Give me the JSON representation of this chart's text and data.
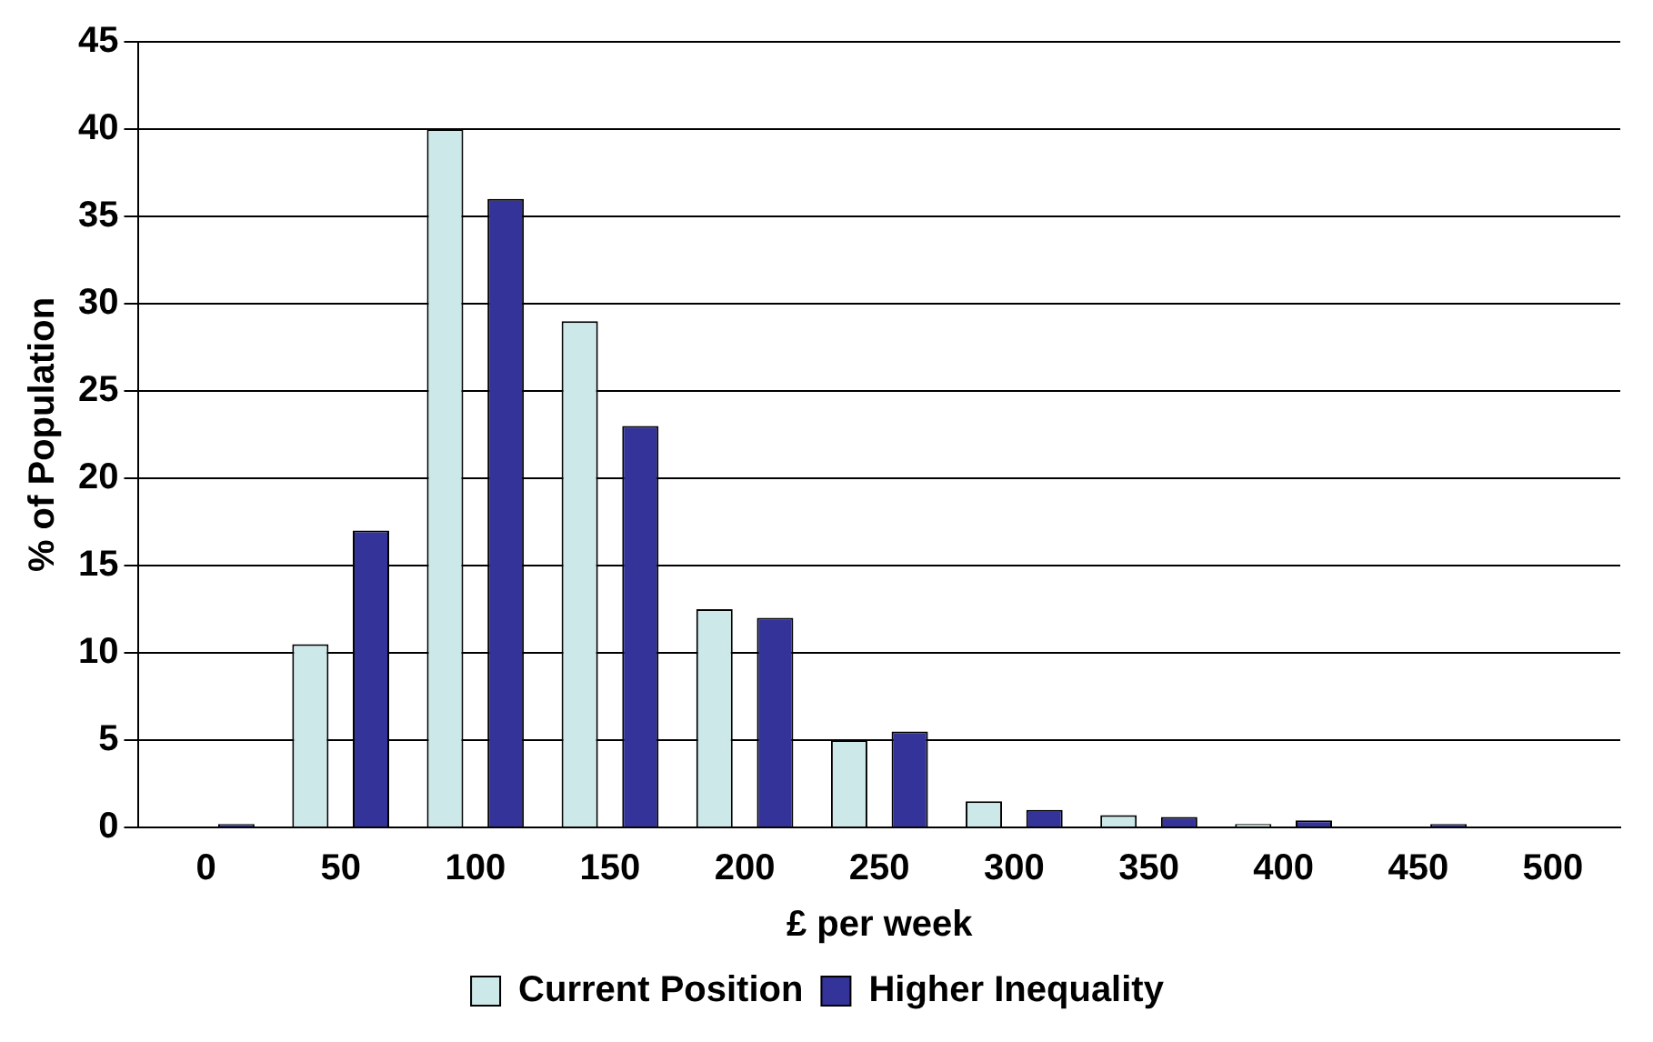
{
  "chart_data": {
    "type": "bar",
    "xlabel": "£ per week",
    "ylabel": "% of Population",
    "categories": [
      "0",
      "50",
      "100",
      "150",
      "200",
      "250",
      "300",
      "350",
      "400",
      "450",
      "500"
    ],
    "series": [
      {
        "name": "Current Position",
        "color": "#cce8e8",
        "values": [
          0,
          10.5,
          40,
          29,
          12.5,
          5,
          1.5,
          0.7,
          0.2,
          0,
          0
        ]
      },
      {
        "name": "Higher Inequality",
        "color": "#333399",
        "values": [
          0.2,
          17,
          36,
          23,
          12,
          5.5,
          1,
          0.6,
          0.4,
          0.2,
          0
        ]
      }
    ],
    "ylim": [
      0,
      45
    ],
    "yticks": [
      0,
      5,
      10,
      15,
      20,
      25,
      30,
      35,
      40,
      45
    ],
    "grid": "y",
    "legend": "bottom"
  }
}
